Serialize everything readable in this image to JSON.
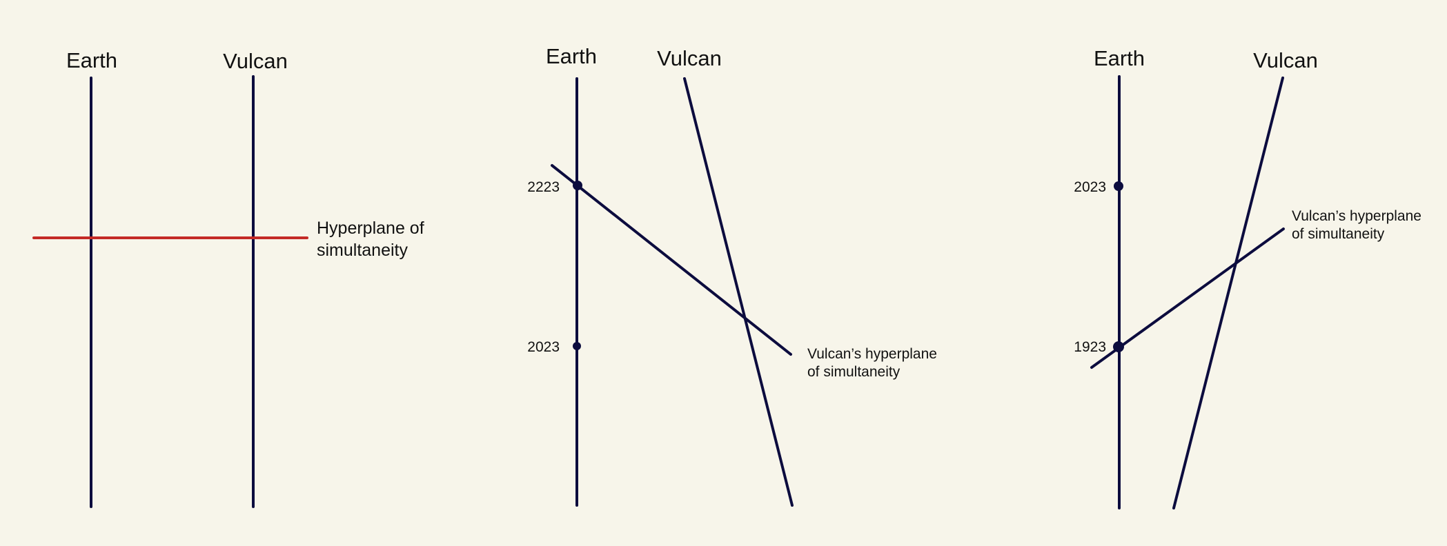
{
  "colors": {
    "background": "#f7f5ea",
    "worldline": "#0c0c3e",
    "hyperplane": "#c42a26",
    "text": "#111111"
  },
  "panel1": {
    "earth_label": "Earth",
    "vulcan_label": "Vulcan",
    "hyperplane_label_line1": "Hyperplane of",
    "hyperplane_label_line2": "simultaneity"
  },
  "panel2": {
    "earth_label": "Earth",
    "vulcan_label": "Vulcan",
    "event_upper_year": "2223",
    "event_lower_year": "2023",
    "hyperplane_label_line1": "Vulcan’s hyperplane",
    "hyperplane_label_line2": "of simultaneity"
  },
  "panel3": {
    "earth_label": "Earth",
    "vulcan_label": "Vulcan",
    "event_upper_year": "2023",
    "event_lower_year": "1923",
    "hyperplane_label_line1": "Vulcan’s hyperplane",
    "hyperplane_label_line2": "of simultaneity"
  }
}
